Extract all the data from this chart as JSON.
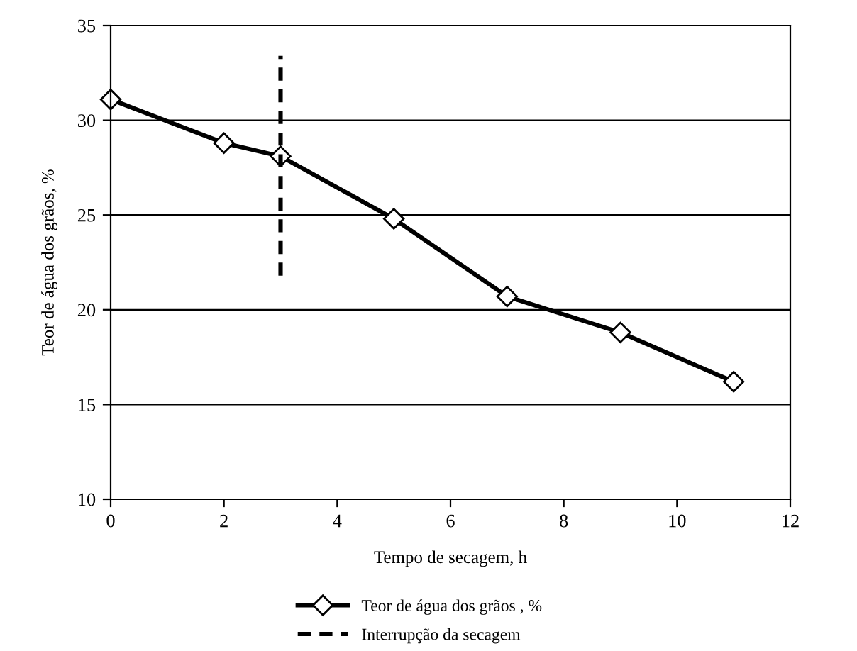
{
  "chart_data": {
    "type": "line",
    "xlabel": "Tempo de secagem, h",
    "ylabel": "Teor de água dos grãos, %",
    "xlim": [
      0,
      12
    ],
    "xticks": [
      0,
      2,
      4,
      6,
      8,
      10,
      12
    ],
    "ylim": [
      10,
      35
    ],
    "yticks": [
      10,
      15,
      20,
      25,
      30,
      35
    ],
    "grid": "y",
    "legend": "bottom",
    "series": [
      {
        "name": "Teor de água dos grãos , %",
        "color": "#000000",
        "x": [
          0,
          2,
          3,
          5,
          7,
          9,
          11
        ],
        "values": [
          31.1,
          28.8,
          28.1,
          24.8,
          20.7,
          18.8,
          16.2
        ],
        "marker": "diamond",
        "line_style": "solid"
      },
      {
        "name": "Interrupção da secagem",
        "color": "#000000",
        "x": [
          3,
          3
        ],
        "values": [
          21.8,
          33.4
        ],
        "marker": "none",
        "line_style": "dashed"
      }
    ]
  }
}
